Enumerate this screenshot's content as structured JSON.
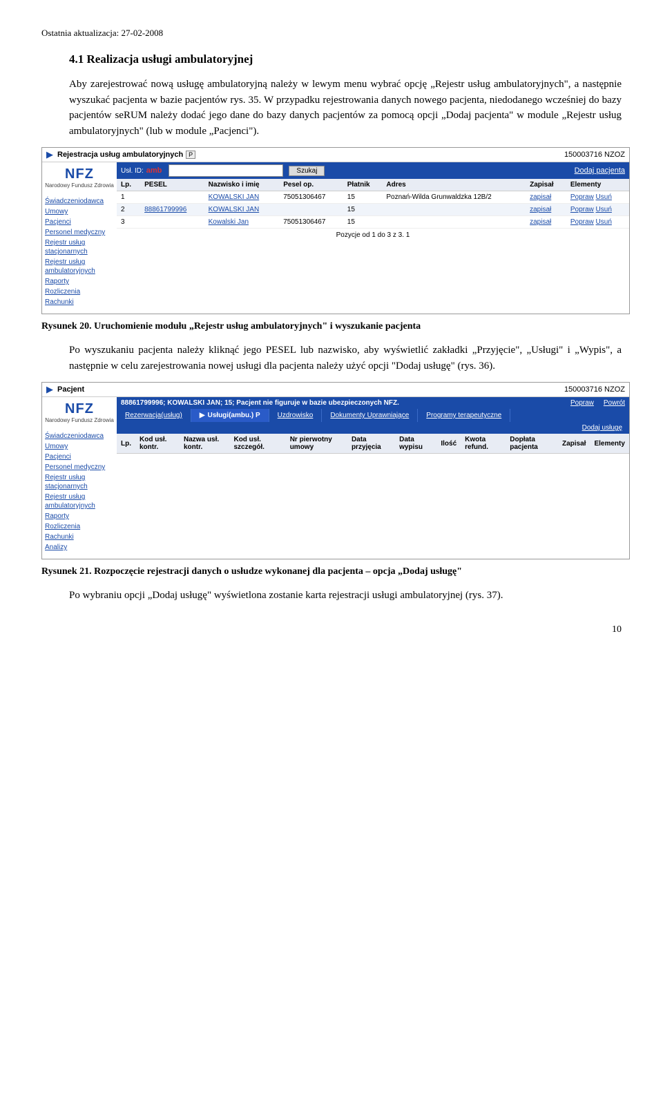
{
  "header_date": "Ostatnia aktualizacja: 27-02-2008",
  "section_title": "4.1 Realizacja usługi ambulatoryjnej",
  "para1": "Aby zarejestrować nową usługę ambulatoryjną należy w lewym menu wybrać opcję „Rejestr usług ambulatoryjnych\", a następnie wyszukać pacjenta w bazie pacjentów rys. 35. W przypadku rejestrowania danych nowego pacjenta, niedodanego wcześniej do bazy pacjentów seRUM należy dodać jego dane do bazy danych pacjentów za pomocą opcji „Dodaj pacjenta\" w module „Rejestr usług ambulatoryjnych\" (lub w module „Pacjenci\").",
  "fig1_caption": "Rysunek 20. Uruchomienie modułu „Rejestr usług ambulatoryjnych\" i wyszukanie pacjenta",
  "para2": "Po wyszukaniu pacjenta należy kliknąć jego PESEL lub nazwisko, aby wyświetlić zakładki „Przyjęcie\", „Usługi\" i „Wypis\", a następnie w celu zarejestrowania nowej usługi dla pacjenta należy użyć opcji \"Dodaj usługę\" (rys. 36).",
  "fig2_caption": "Rysunek 21. Rozpoczęcie rejestracji danych o usłudze wykonanej dla pacjenta – opcja „Dodaj usługę\"",
  "para3": "Po wybraniu opcji „Dodaj usługę\" wyświetlona zostanie karta rejestracji usługi ambulatoryjnej (rys. 37).",
  "page_num": "10",
  "app1": {
    "topbar_title": "Rejestracja usług ambulatoryjnych",
    "top_right": "150003716 NZOZ",
    "logo_big": "NFZ",
    "logo_sub": "Narodowy Fundusz Zdrowia",
    "sidebar": [
      "Świadczeniodawca",
      "Umowy",
      "Pacjenci",
      "Personel medyczny",
      "Rejestr usług stacjonarnych",
      "Rejestr usług ambulatoryjnych",
      "Raporty",
      "Rozliczenia",
      "Rachunki"
    ],
    "search_label": "Usł. ID:",
    "search_red": "amb",
    "search_btn": "Szukaj",
    "dodaj_pacjenta": "Dodaj pacjenta",
    "grid": {
      "cols": [
        "Lp.",
        "PESEL",
        "Nazwisko i imię",
        "Pesel op.",
        "Płatnik",
        "Adres",
        "Zapisał",
        "Elementy"
      ],
      "rows": [
        {
          "lp": "1",
          "pesel": "",
          "name": "KOWALSKI JAN",
          "pop": "75051306467",
          "pl": "15",
          "adr": "Poznań-Wilda Grunwaldzka 12B/2",
          "zap": "zapisał",
          "el": "Popraw Usuń",
          "link_pesel": false,
          "link_name": true
        },
        {
          "lp": "2",
          "pesel": "88861799996",
          "name": "KOWALSKI JAN",
          "pop": "",
          "pl": "15",
          "adr": "",
          "zap": "zapisał",
          "el": "Popraw Usuń",
          "link_pesel": true,
          "link_name": true,
          "alt": true
        },
        {
          "lp": "3",
          "pesel": "",
          "name": "Kowalski Jan",
          "pop": "75051306467",
          "pl": "15",
          "adr": "",
          "zap": "zapisał",
          "el": "Popraw Usuń",
          "link_pesel": false,
          "link_name": true
        }
      ],
      "footer": "Pozycje od 1 do 3 z 3. 1"
    }
  },
  "app2": {
    "topbar_title": "Pacjent",
    "top_right": "150003716 NZOZ",
    "info_text": "88861799996; KOWALSKI JAN; 15; Pacjent nie figuruje w bazie ubezpieczonych NFZ.",
    "info_links": [
      "Popraw",
      "Powrót"
    ],
    "tabs": [
      {
        "label": "Rezerwacja(usług)",
        "active": false
      },
      {
        "label": "Usługi(ambu.)",
        "active": true,
        "badge": "P"
      },
      {
        "label": "Uzdrowisko",
        "active": false
      },
      {
        "label": "Dokumenty Uprawniające",
        "active": false
      },
      {
        "label": "Programy terapeutyczne",
        "active": false
      }
    ],
    "dodaj_usluge": "Dodaj usługę",
    "sidebar": [
      "Świadczeniodawca",
      "Umowy",
      "Pacjenci",
      "Personel medyczny",
      "Rejestr usług stacjonarnych",
      "Rejestr usług ambulatoryjnych",
      "Raporty",
      "Rozliczenia",
      "Rachunki",
      "Analizy"
    ],
    "grid_cols": [
      "Lp.",
      "Kod usł. kontr.",
      "Nazwa usł. kontr.",
      "Kod usł. szczegół.",
      "Nr pierwotny umowy",
      "Data przyjęcia",
      "Data wypisu",
      "Ilość",
      "Kwota refund.",
      "Dopłata pacjenta",
      "Zapisał",
      "Elementy"
    ]
  }
}
